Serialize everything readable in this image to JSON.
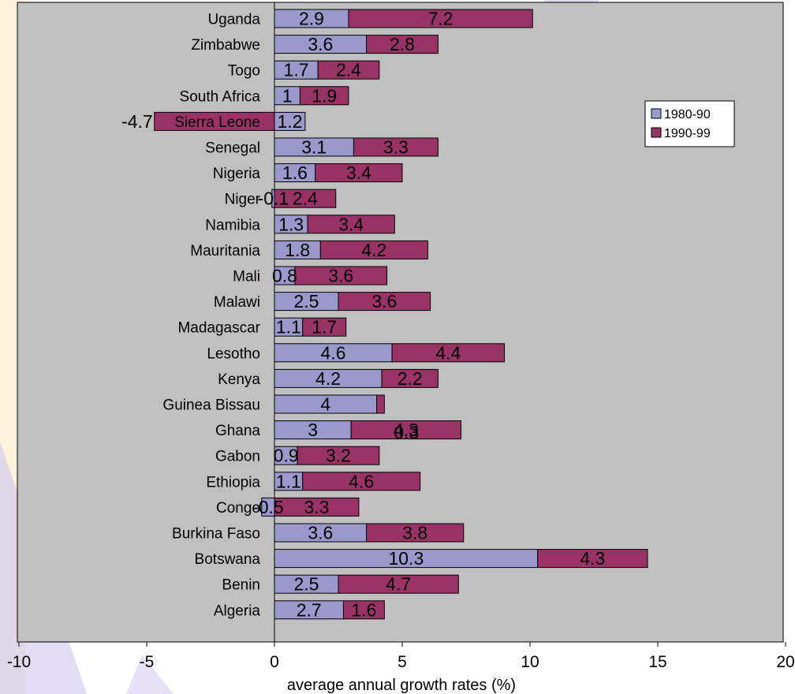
{
  "chart_data": {
    "type": "bar",
    "orientation": "horizontal",
    "stacked": true,
    "categories": [
      "Algeria",
      "Benin",
      "Botswana",
      "Burkina Faso",
      "Congo",
      "Ethiopia",
      "Gabon",
      "Ghana",
      "Guinea Bissau",
      "Kenya",
      "Lesotho",
      "Madagascar",
      "Malawi",
      "Mali",
      "Mauritania",
      "Namibia",
      "Niger",
      "Nigeria",
      "Senegal",
      "Sierra Leone",
      "South Africa",
      "Togo",
      "Zimbabwe",
      "Uganda"
    ],
    "series": [
      {
        "name": "1980-90",
        "color": "#9999cc",
        "values": [
          2.7,
          2.5,
          10.3,
          3.6,
          -0.5,
          1.1,
          0.9,
          3.0,
          4.0,
          4.2,
          4.6,
          1.1,
          2.5,
          0.8,
          1.8,
          1.3,
          -0.1,
          1.6,
          3.1,
          1.2,
          1.0,
          1.7,
          3.6,
          2.9
        ]
      },
      {
        "name": "1990-99",
        "color": "#993366",
        "values": [
          1.6,
          4.7,
          4.3,
          3.8,
          3.3,
          4.6,
          3.2,
          4.3,
          0.3,
          2.2,
          4.4,
          1.7,
          3.6,
          3.6,
          4.2,
          3.4,
          2.4,
          3.4,
          3.3,
          -4.7,
          1.9,
          2.4,
          2.8,
          7.2
        ]
      }
    ],
    "data_labels": {
      "1980-90": [
        "2.7",
        "2.5",
        "10.3",
        "3.6",
        "-0.5",
        "1.1",
        "0.9",
        "3",
        "4",
        "4.2",
        "4.6",
        "1.1",
        "2.5",
        "0.8",
        "1.8",
        "1.3",
        "-0.1",
        "1.6",
        "3.1",
        "1.2",
        "1",
        "1.7",
        "3.6",
        "2.9"
      ],
      "1990-99": [
        "1.6",
        "4.7",
        "4.3",
        "3.8",
        "3.3",
        "4.6",
        "3.2",
        "4.3",
        "0.3",
        "2.2",
        "4.4",
        "1.7",
        "3.6",
        "3.6",
        "4.2",
        "3.4",
        "2.4",
        "3.4",
        "3.3",
        "-4.7",
        "1.9",
        "2.4",
        "2.8",
        "7.2"
      ]
    },
    "xlabel": "average annual growth rates (%)",
    "ylabel": "",
    "title": "",
    "xlim": [
      -10,
      20
    ],
    "xticks": [
      "-10",
      "-5",
      "0",
      "5",
      "10",
      "15",
      "20"
    ],
    "grid": false,
    "legend_position": "right",
    "plot_background": "#c0c0c0"
  }
}
